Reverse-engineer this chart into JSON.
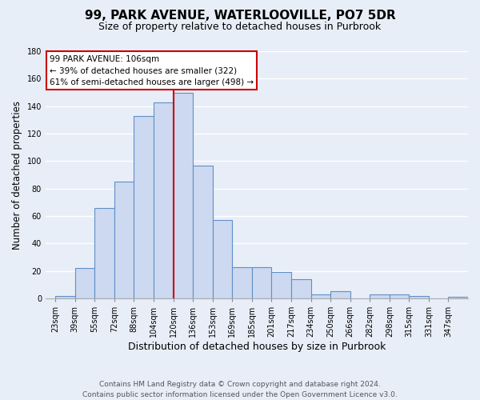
{
  "title": "99, PARK AVENUE, WATERLOOVILLE, PO7 5DR",
  "subtitle": "Size of property relative to detached houses in Purbrook",
  "xlabel": "Distribution of detached houses by size in Purbrook",
  "ylabel": "Number of detached properties",
  "bin_labels": [
    "23sqm",
    "39sqm",
    "55sqm",
    "72sqm",
    "88sqm",
    "104sqm",
    "120sqm",
    "136sqm",
    "153sqm",
    "169sqm",
    "185sqm",
    "201sqm",
    "217sqm",
    "234sqm",
    "250sqm",
    "266sqm",
    "282sqm",
    "298sqm",
    "315sqm",
    "331sqm",
    "347sqm"
  ],
  "bar_heights": [
    2,
    22,
    66,
    85,
    133,
    143,
    150,
    97,
    57,
    23,
    23,
    19,
    14,
    3,
    5,
    0,
    3,
    3,
    2,
    0,
    1
  ],
  "bar_color": "#ccd9f0",
  "bar_edge_color": "#6090c8",
  "ylim": [
    0,
    180
  ],
  "yticks": [
    0,
    20,
    40,
    60,
    80,
    100,
    120,
    140,
    160,
    180
  ],
  "vline_x": 5.5,
  "annotation_title": "99 PARK AVENUE: 106sqm",
  "annotation_line1": "← 39% of detached houses are smaller (322)",
  "annotation_line2": "61% of semi-detached houses are larger (498) →",
  "vline_color": "#cc0000",
  "annotation_box_color": "#ffffff",
  "annotation_box_edge": "#cc0000",
  "footer_line1": "Contains HM Land Registry data © Crown copyright and database right 2024.",
  "footer_line2": "Contains public sector information licensed under the Open Government Licence v3.0.",
  "background_color": "#e8eef8",
  "plot_bg_color": "#e8eef8",
  "grid_color": "#ffffff",
  "title_fontsize": 11,
  "subtitle_fontsize": 9,
  "ylabel_fontsize": 8.5,
  "xlabel_fontsize": 9,
  "tick_fontsize": 7,
  "annotation_fontsize": 7.5,
  "footer_fontsize": 6.5
}
